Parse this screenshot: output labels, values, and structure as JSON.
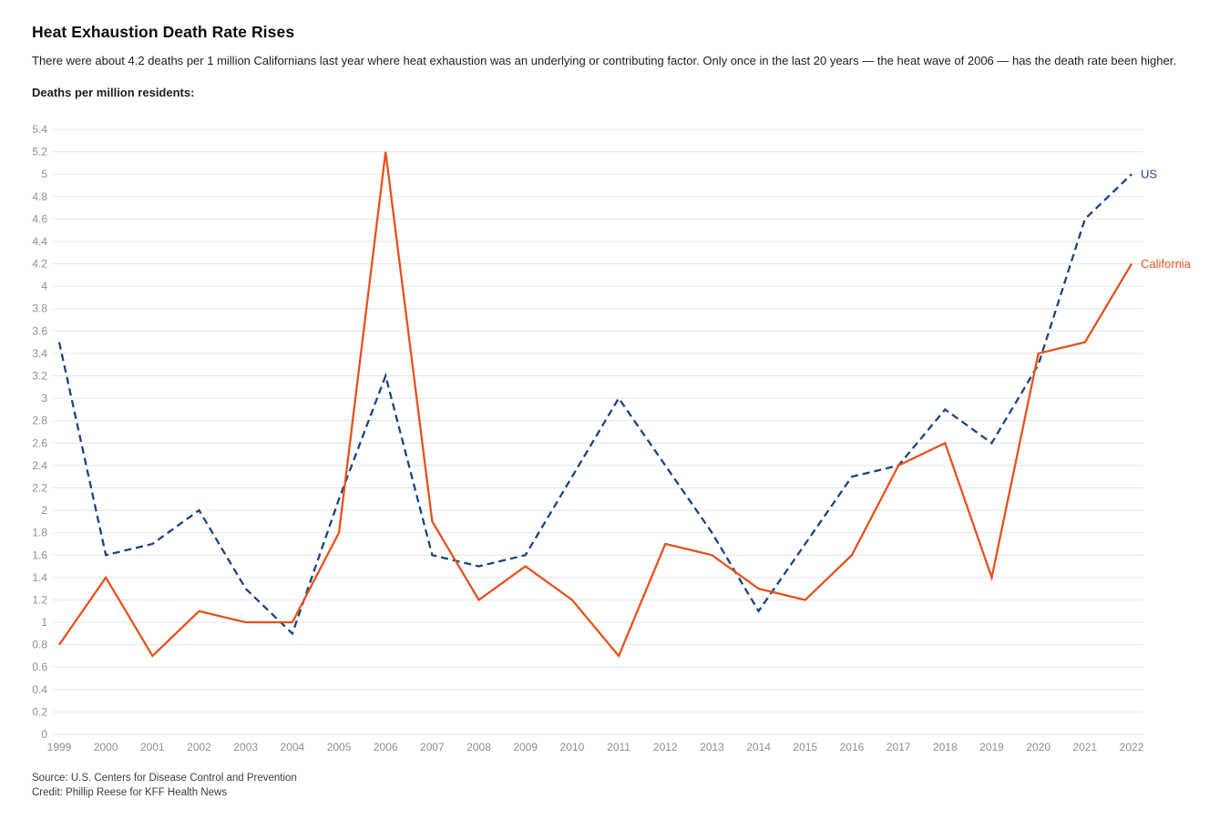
{
  "header": {
    "title": "Heat Exhaustion Death Rate Rises",
    "subtitle": "There were about 4.2 deaths per 1 million Californians last year where heat exhaustion was an underlying or contributing factor. Only once in the last 20 years — the heat wave of 2006 — has the death rate been higher.",
    "axis_note": "Deaths per million residents:"
  },
  "chart_data": {
    "type": "line",
    "x": [
      1999,
      2000,
      2001,
      2002,
      2003,
      2004,
      2005,
      2006,
      2007,
      2008,
      2009,
      2010,
      2011,
      2012,
      2013,
      2014,
      2015,
      2016,
      2017,
      2018,
      2019,
      2020,
      2021,
      2022
    ],
    "series": [
      {
        "name": "US",
        "style": "dashed",
        "color": "#1a4480",
        "values": [
          3.5,
          1.6,
          1.7,
          2.0,
          1.3,
          0.9,
          2.1,
          3.2,
          1.6,
          1.5,
          1.6,
          2.3,
          3.0,
          2.4,
          1.8,
          1.1,
          1.7,
          2.3,
          2.4,
          2.9,
          2.6,
          3.3,
          4.6,
          5.0
        ]
      },
      {
        "name": "California",
        "style": "solid",
        "color": "#e8511d",
        "values": [
          0.8,
          1.4,
          0.7,
          1.1,
          1.0,
          1.0,
          1.8,
          5.2,
          1.9,
          1.2,
          1.5,
          1.2,
          0.7,
          1.7,
          1.6,
          1.3,
          1.2,
          1.6,
          2.4,
          2.6,
          1.4,
          3.4,
          3.5,
          4.2
        ]
      }
    ],
    "title": "Heat Exhaustion Death Rate Rises",
    "ylabel": "Deaths per million residents:",
    "xlabel": "",
    "ylim": [
      0,
      5.4
    ],
    "ytick_step": 0.2,
    "grid": true,
    "legend_position": "line-end-labels",
    "gridline_color": "#e4e4e4",
    "tick_label_color": "#8f8f8f"
  },
  "footer": {
    "source": "Source: U.S. Centers for Disease Control and Prevention",
    "credit": "Credit: Phillip Reese for KFF Health News"
  }
}
